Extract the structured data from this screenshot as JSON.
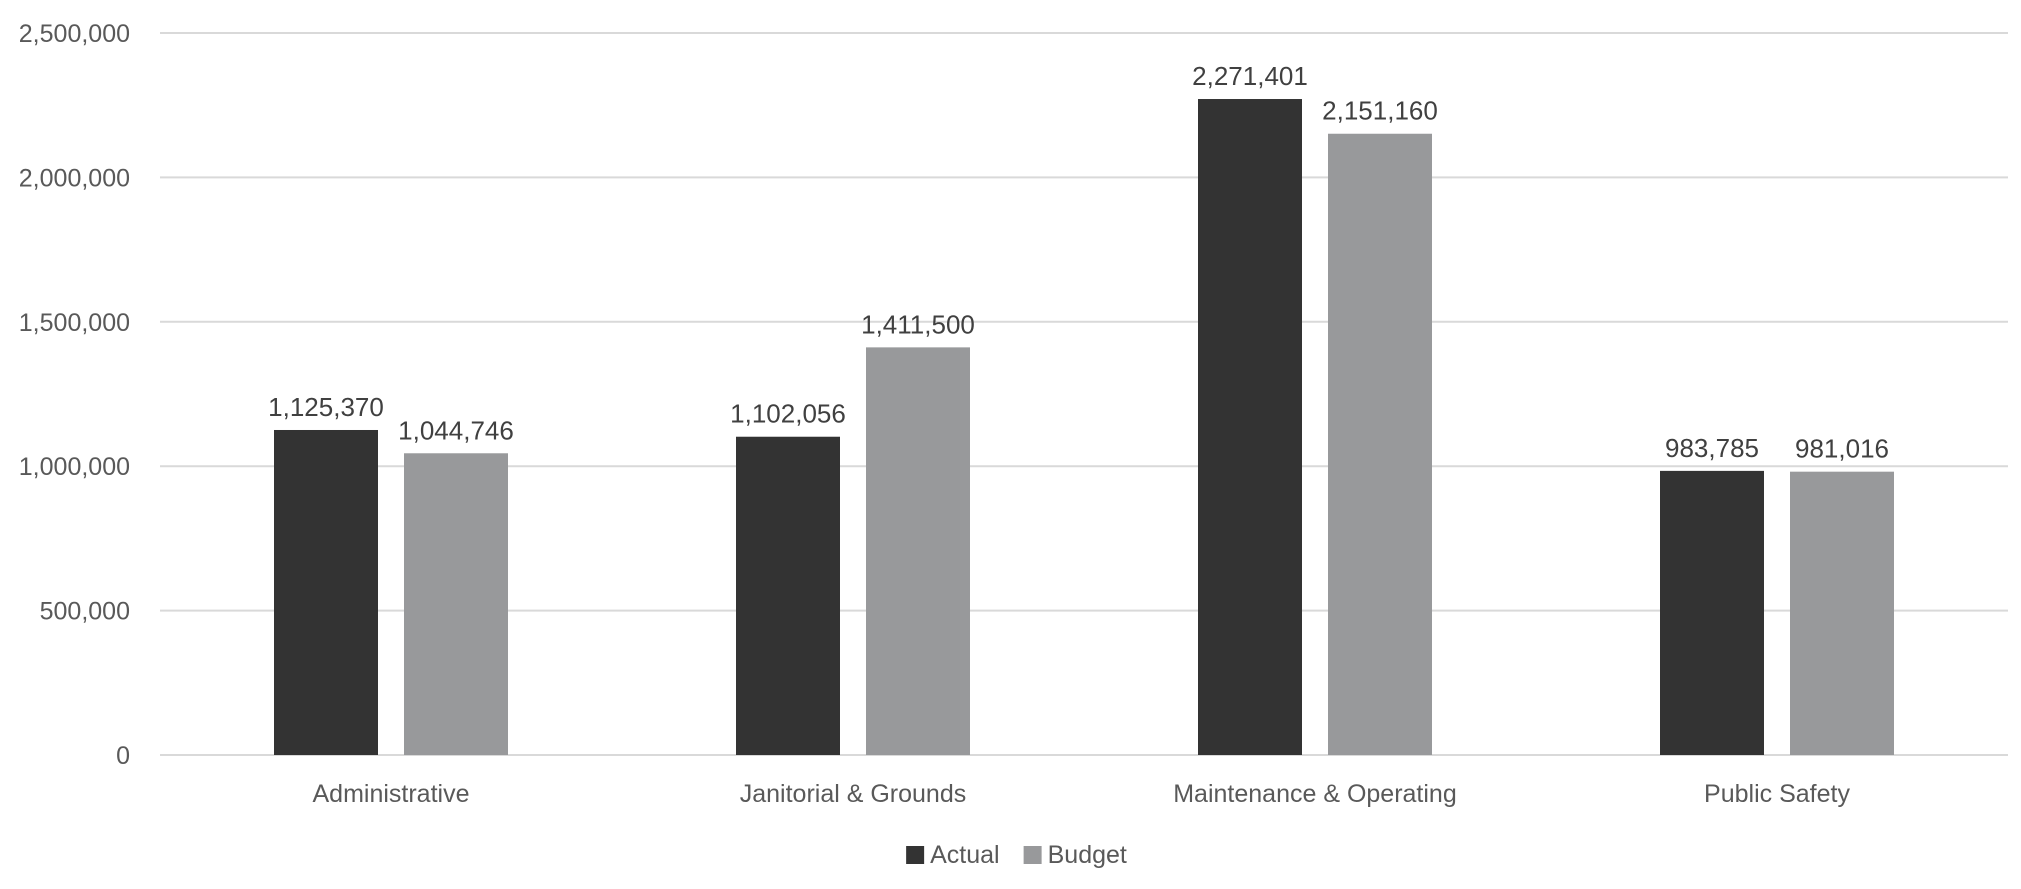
{
  "chart_data": {
    "type": "bar",
    "title": "",
    "xlabel": "",
    "ylabel": "",
    "categories": [
      "Administrative",
      "Janitorial & Grounds",
      "Maintenance & Operating",
      "Public Safety"
    ],
    "series": [
      {
        "name": "Actual",
        "color": "#333333",
        "values": [
          1125370,
          1102056,
          2271401,
          983785
        ],
        "labels": [
          "1,125,370",
          "1,102,056",
          "2,271,401",
          "983,785"
        ]
      },
      {
        "name": "Budget",
        "color": "#98999b",
        "values": [
          1044746,
          1411500,
          2151160,
          981016
        ],
        "labels": [
          "1,044,746",
          "1,411,500",
          "2,151,160",
          "981,016"
        ]
      }
    ],
    "ylim": [
      0,
      2500000
    ],
    "yticks": [
      0,
      500000,
      1000000,
      1500000,
      2000000,
      2500000
    ],
    "ytick_labels": [
      "0",
      "500,000",
      "1,000,000",
      "1,500,000",
      "2,000,000",
      "2,500,000"
    ],
    "grid": true,
    "legend_position": "bottom-center"
  }
}
